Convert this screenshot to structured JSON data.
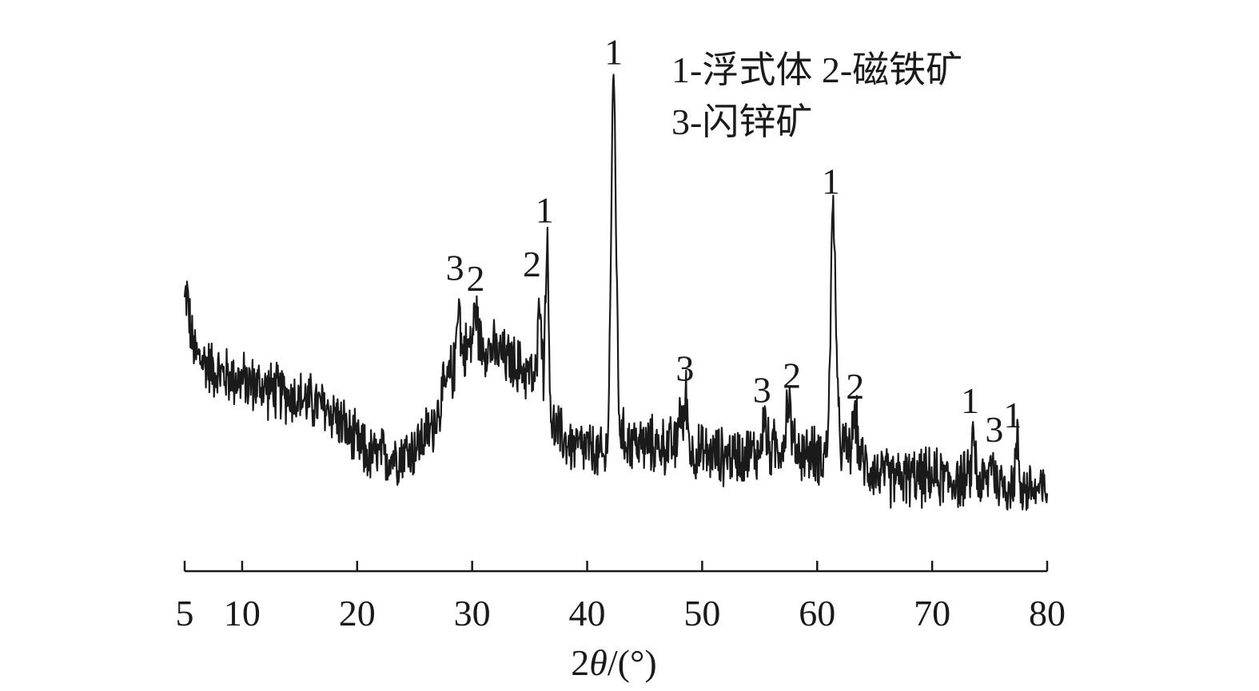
{
  "chart_data": {
    "type": "line",
    "title": "",
    "xlabel_prefix": "2",
    "xlabel_symbol": "θ",
    "xlabel_suffix": "/(°)",
    "ylabel": "",
    "xlim": [
      5,
      80
    ],
    "x_ticks": [
      5,
      10,
      20,
      30,
      40,
      50,
      60,
      70,
      80
    ],
    "y_axis_shown": false,
    "grid": false,
    "legend": {
      "placement": "top-right",
      "lines": [
        "1-浮式体 2-磁铁矿",
        "3-闪锌矿"
      ]
    },
    "series": [
      {
        "color": "#1a1a1a",
        "baseline": [
          [
            5,
            68
          ],
          [
            6,
            60
          ],
          [
            8,
            55
          ],
          [
            10,
            53
          ],
          [
            12,
            51
          ],
          [
            14,
            49
          ],
          [
            16,
            47
          ],
          [
            18,
            44
          ],
          [
            19.5,
            37
          ],
          [
            21,
            32
          ],
          [
            23,
            32
          ],
          [
            25,
            34
          ],
          [
            26.5,
            40
          ],
          [
            28,
            54
          ],
          [
            29.5,
            62
          ],
          [
            31,
            63
          ],
          [
            33,
            59
          ],
          [
            35,
            55
          ],
          [
            36.5,
            48
          ],
          [
            37,
            40
          ],
          [
            38.5,
            35
          ],
          [
            40,
            34
          ],
          [
            41.5,
            31
          ],
          [
            42,
            34
          ],
          [
            43,
            37
          ],
          [
            45,
            35
          ],
          [
            47,
            35
          ],
          [
            49,
            33
          ],
          [
            52,
            32
          ],
          [
            55,
            33
          ],
          [
            57,
            35
          ],
          [
            59,
            33
          ],
          [
            60.5,
            32
          ],
          [
            62,
            35
          ],
          [
            64,
            30
          ],
          [
            66,
            26
          ],
          [
            70,
            26
          ],
          [
            74,
            25
          ],
          [
            77,
            24
          ],
          [
            80,
            22
          ]
        ],
        "peaks": [
          {
            "x": 5.2,
            "y": 77,
            "w": 0.2
          },
          {
            "x": 28.8,
            "y": 76,
            "w": 0.15
          },
          {
            "x": 30.3,
            "y": 72,
            "w": 0.2
          },
          {
            "x": 35.9,
            "y": 78,
            "w": 0.15
          },
          {
            "x": 36.5,
            "y": 91,
            "w": 0.15
          },
          {
            "x": 42.3,
            "y": 135,
            "w": 0.22
          },
          {
            "x": 48.1,
            "y": 47,
            "w": 0.15
          },
          {
            "x": 48.6,
            "y": 49,
            "w": 0.15
          },
          {
            "x": 55.4,
            "y": 43,
            "w": 0.15
          },
          {
            "x": 57.5,
            "y": 48,
            "w": 0.2
          },
          {
            "x": 61.4,
            "y": 100,
            "w": 0.22
          },
          {
            "x": 63.3,
            "y": 43,
            "w": 0.2
          },
          {
            "x": 73.6,
            "y": 38,
            "w": 0.15
          },
          {
            "x": 75.2,
            "y": 33,
            "w": 0.15
          },
          {
            "x": 77.4,
            "y": 35,
            "w": 0.15
          }
        ],
        "noise_amplitude": 8,
        "ylim": [
          0,
          150
        ]
      }
    ],
    "peak_labels": [
      {
        "text": "3",
        "x": 28.5,
        "y": 81
      },
      {
        "text": "2",
        "x": 30.3,
        "y": 78
      },
      {
        "text": "2",
        "x": 35.2,
        "y": 82
      },
      {
        "text": "1",
        "x": 36.3,
        "y": 97
      },
      {
        "text": "1",
        "x": 42.3,
        "y": 141
      },
      {
        "text": "1",
        "x": 61.2,
        "y": 105
      },
      {
        "text": "3",
        "x": 48.5,
        "y": 53
      },
      {
        "text": "3",
        "x": 55.2,
        "y": 47
      },
      {
        "text": "2",
        "x": 57.8,
        "y": 51
      },
      {
        "text": "2",
        "x": 63.3,
        "y": 48
      },
      {
        "text": "1",
        "x": 73.3,
        "y": 44
      },
      {
        "text": "3",
        "x": 75.4,
        "y": 36
      },
      {
        "text": "1",
        "x": 77.0,
        "y": 40
      }
    ]
  }
}
